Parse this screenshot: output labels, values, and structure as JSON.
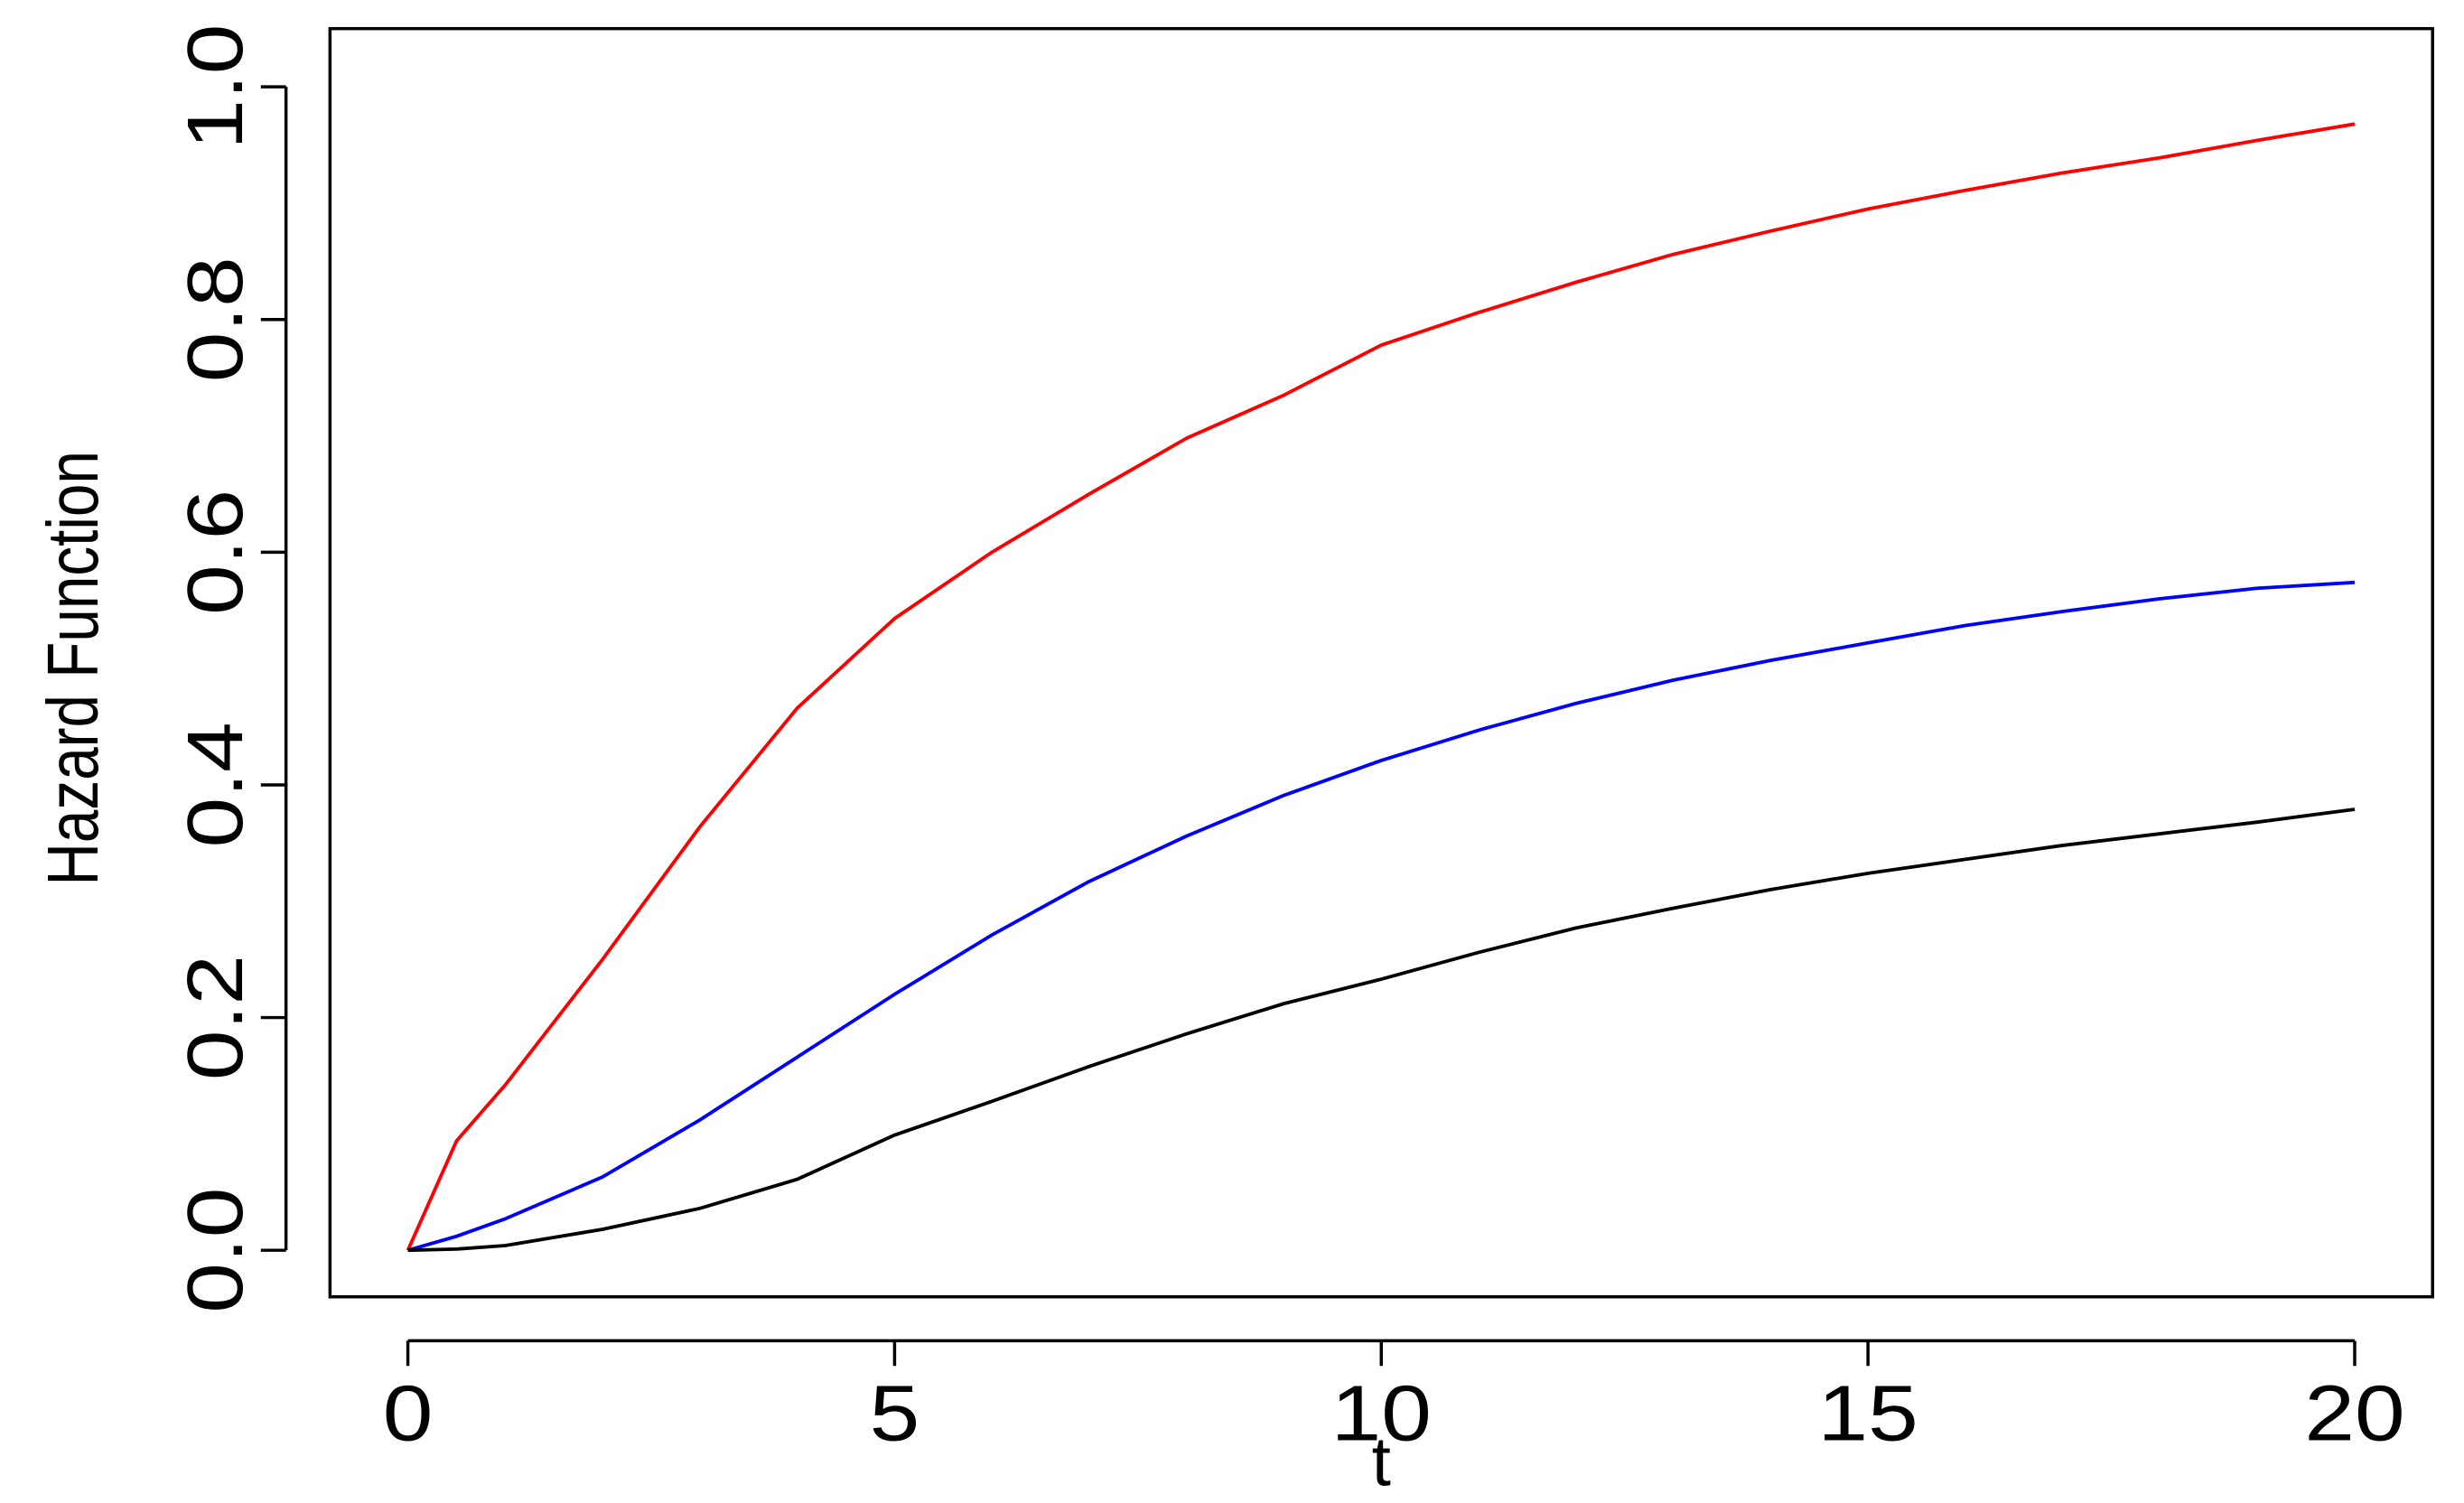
{
  "chart_data": {
    "type": "line",
    "x_label": "t",
    "y_label": "Hazard Function",
    "x": [
      0,
      0.5,
      1,
      2,
      3,
      4,
      5,
      6,
      7,
      8,
      9,
      10,
      11,
      12,
      13,
      14,
      15,
      16,
      17,
      18,
      19,
      20
    ],
    "series": [
      {
        "color": "#ff0000",
        "values": [
          0,
          0.094,
          0.142,
          0.25,
          0.364,
          0.466,
          0.543,
          0.6,
          0.65,
          0.698,
          0.735,
          0.778,
          0.806,
          0.832,
          0.856,
          0.876,
          0.895,
          0.911,
          0.926,
          0.939,
          0.954,
          0.968
        ]
      },
      {
        "color": "#0000ff",
        "values": [
          0,
          0.012,
          0.027,
          0.063,
          0.112,
          0.166,
          0.22,
          0.271,
          0.317,
          0.356,
          0.391,
          0.421,
          0.447,
          0.47,
          0.49,
          0.507,
          0.522,
          0.537,
          0.549,
          0.56,
          0.569,
          0.574
        ]
      },
      {
        "color": "#000000",
        "values": [
          0,
          0.001,
          0.004,
          0.018,
          0.036,
          0.061,
          0.099,
          0.128,
          0.158,
          0.186,
          0.212,
          0.233,
          0.256,
          0.277,
          0.294,
          0.31,
          0.324,
          0.336,
          0.348,
          0.358,
          0.368,
          0.379
        ]
      }
    ],
    "xlim": [
      -0.8,
      20.8
    ],
    "xticks": [
      0,
      5,
      10,
      15,
      20
    ],
    "ylim": [
      -0.04,
      1.05
    ],
    "yticks": [
      {
        "value": 0,
        "label": "0.0"
      },
      0.2,
      0.4,
      0.6,
      0.8,
      {
        "value": 1,
        "label": "1.0"
      }
    ]
  }
}
